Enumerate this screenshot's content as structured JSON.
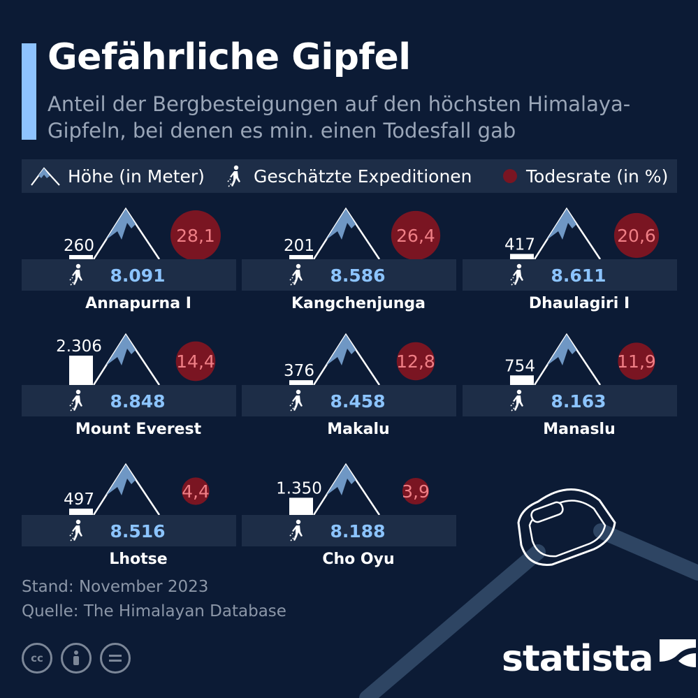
{
  "header": {
    "title": "Gefährliche Gipfel",
    "subtitle": "Anteil der Bergbesteigungen auf den höchsten Himalaya-Gipfeln, bei denen es min. einen Todesfall gab"
  },
  "legend": {
    "height_label": "Höhe (in Meter)",
    "expeditions_label": "Geschätzte Expeditionen",
    "deathrate_label": "Todesrate (in %)"
  },
  "chart_data": {
    "type": "table",
    "title": "Gefährliche Gipfel",
    "series_names": [
      "Höhe (in Meter)",
      "Geschätzte Expeditionen",
      "Todesrate (in %)"
    ],
    "mountains": [
      {
        "name": "Annapurna I",
        "height": "8.091",
        "expeditions": "260",
        "expeditions_value": 260,
        "deathrate": "28,1",
        "deathrate_value": 28.1
      },
      {
        "name": "Kangchenjunga",
        "height": "8.586",
        "expeditions": "201",
        "expeditions_value": 201,
        "deathrate": "26,4",
        "deathrate_value": 26.4
      },
      {
        "name": "Dhaulagiri I",
        "height": "8.611",
        "expeditions": "417",
        "expeditions_value": 417,
        "deathrate": "20,6",
        "deathrate_value": 20.6
      },
      {
        "name": "Mount Everest",
        "height": "8.848",
        "expeditions": "2.306",
        "expeditions_value": 2306,
        "deathrate": "14,4",
        "deathrate_value": 14.4
      },
      {
        "name": "Makalu",
        "height": "8.458",
        "expeditions": "376",
        "expeditions_value": 376,
        "deathrate": "12,8",
        "deathrate_value": 12.8
      },
      {
        "name": "Manaslu",
        "height": "8.163",
        "expeditions": "754",
        "expeditions_value": 754,
        "deathrate": "11,9",
        "deathrate_value": 11.9
      },
      {
        "name": "Lhotse",
        "height": "8.516",
        "expeditions": "497",
        "expeditions_value": 497,
        "deathrate": "4,4",
        "deathrate_value": 4.4
      },
      {
        "name": "Cho Oyu",
        "height": "8.188",
        "expeditions": "1.350",
        "expeditions_value": 1350,
        "deathrate": "3,9",
        "deathrate_value": 3.9
      }
    ]
  },
  "footer": {
    "stand": "Stand: November 2023",
    "source": "Quelle: The Himalayan Database"
  },
  "brand": {
    "name": "statista"
  },
  "license_icons": [
    "cc-icon",
    "by-icon",
    "nd-icon"
  ],
  "colors": {
    "background": "#0c1b35",
    "panel": "#1d2d47",
    "accent": "#8ec3ff",
    "height_text": "#8cc4ff",
    "death_circle": "#7a1522",
    "death_text": "#f07f86",
    "mountain": "#6f97c4"
  }
}
